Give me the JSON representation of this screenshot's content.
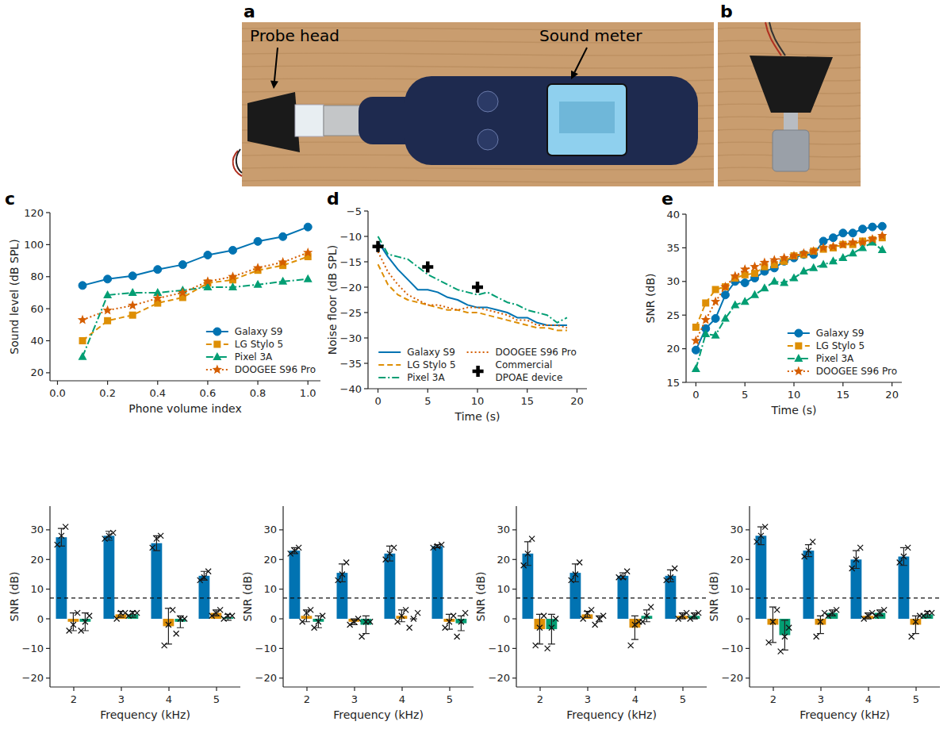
{
  "photos": [
    {
      "panel_label": "a",
      "labels": [
        "Probe head",
        "Sound meter"
      ]
    },
    {
      "panel_label": "b"
    }
  ],
  "chart_data": [
    {
      "type": "line",
      "panel_label": "c",
      "x_label": "Phone volume index",
      "y_label": "Sound level (dB SPL)",
      "x": [
        0.1,
        0.2,
        0.3,
        0.4,
        0.5,
        0.6,
        0.7,
        0.8,
        0.9,
        1.0
      ],
      "xlim": [
        -0.03,
        1.05
      ],
      "xticks": [
        {
          "value": 0,
          "label": "0.0"
        },
        0.2,
        0.4,
        0.6,
        0.8,
        {
          "value": 1,
          "label": "1.0"
        }
      ],
      "ylim": [
        15,
        120
      ],
      "yticks": [
        20,
        40,
        60,
        80,
        100,
        120
      ],
      "legend": "lower right",
      "series": [
        {
          "name": "Galaxy S9",
          "color": "#0173b2",
          "marker": "circle",
          "line_style": "solid",
          "values": [
            74.5,
            78.5,
            80.5,
            84.5,
            87.5,
            93.5,
            96.5,
            102,
            105,
            111
          ]
        },
        {
          "name": "LG Stylo 5",
          "color": "#de8f05",
          "marker": "square",
          "line_style": "dashed",
          "values": [
            40,
            52.5,
            56,
            63.5,
            67,
            76,
            78,
            84,
            87,
            92.5
          ]
        },
        {
          "name": "Pixel 3A",
          "color": "#029e73",
          "marker": "triangle",
          "line_style": "dashdot",
          "values": [
            30,
            68.5,
            70,
            70,
            71.5,
            73.5,
            73.5,
            75,
            77,
            78.5
          ]
        },
        {
          "name": "DOOGEE S96 Pro",
          "color": "#d55e00",
          "marker": "star",
          "line_style": "dotted",
          "values": [
            53,
            59,
            62,
            66.5,
            70,
            77,
            80,
            85.5,
            89,
            95
          ]
        }
      ]
    },
    {
      "type": "line",
      "panel_label": "d",
      "x_label": "Time (s)",
      "y_label": "Noise floor (dB SPL)",
      "x": [
        0,
        1,
        2,
        3,
        4,
        5,
        6,
        7,
        8,
        9,
        10,
        11,
        12,
        13,
        14,
        15,
        16,
        17,
        18,
        19
      ],
      "xlim": [
        -1,
        21
      ],
      "xticks": [
        0,
        5,
        10,
        15,
        20
      ],
      "ylim": [
        -40,
        -5
      ],
      "yticks": [
        {
          "value": -40,
          "label": "−40"
        },
        {
          "value": -35,
          "label": "−35"
        },
        {
          "value": -30,
          "label": "−30"
        },
        {
          "value": -25,
          "label": "−25"
        },
        {
          "value": -20,
          "label": "−20"
        },
        {
          "value": -15,
          "label": "−15"
        },
        {
          "value": -10,
          "label": "−10"
        },
        {
          "value": -5,
          "label": "−5"
        }
      ],
      "legend": "lower center",
      "series": [
        {
          "name": "Galaxy S9",
          "color": "#0173b2",
          "line_style": "solid",
          "values": [
            -11,
            -14,
            -16.5,
            -18.5,
            -20.5,
            -20.5,
            -21,
            -22,
            -22.5,
            -23.5,
            -24,
            -24,
            -24.5,
            -25,
            -26,
            -26,
            -27,
            -27.5,
            -27.5,
            -27.5
          ]
        },
        {
          "name": "LG Stylo 5",
          "color": "#de8f05",
          "line_style": "dashed",
          "values": [
            -15.5,
            -19.5,
            -21.5,
            -22.5,
            -23,
            -23.5,
            -24,
            -24.5,
            -24.5,
            -25,
            -25,
            -25.5,
            -26,
            -26.5,
            -27,
            -27.5,
            -28,
            -28,
            -28.5,
            -28.5
          ]
        },
        {
          "name": "Pixel 3A",
          "color": "#029e73",
          "line_style": "dashdot",
          "values": [
            -10,
            -13.5,
            -14,
            -14.5,
            -16,
            -17.5,
            -18.5,
            -19.5,
            -20.5,
            -21,
            -21.5,
            -21,
            -22,
            -23,
            -23.5,
            -24.5,
            -25,
            -25.5,
            -27,
            -26
          ]
        },
        {
          "name": "DOOGEE S96 Pro",
          "color": "#d55e00",
          "line_style": "dotted",
          "values": [
            -13,
            -17,
            -19.5,
            -21.5,
            -22.5,
            -23.5,
            -23.5,
            -24,
            -24.5,
            -24,
            -24,
            -24.5,
            -25,
            -25.5,
            -26.5,
            -26.5,
            -27.5,
            -27.5,
            -27.5,
            -28
          ]
        },
        {
          "name": "Commercial DPOAE device",
          "type": "scatter",
          "color": "#000000",
          "marker": "plus",
          "x": [
            0,
            5,
            10
          ],
          "values": [
            -12,
            -16,
            -20
          ]
        }
      ]
    },
    {
      "type": "line",
      "panel_label": "e",
      "x_label": "Time (s)",
      "y_label": "SNR (dB)",
      "x": [
        0,
        1,
        2,
        3,
        4,
        5,
        6,
        7,
        8,
        9,
        10,
        11,
        12,
        13,
        14,
        15,
        16,
        17,
        18,
        19
      ],
      "xlim": [
        -1,
        21
      ],
      "xticks": [
        0,
        5,
        10,
        15,
        20
      ],
      "ylim": [
        15,
        40
      ],
      "yticks": [
        15,
        20,
        25,
        30,
        35,
        40
      ],
      "legend": "lower right",
      "series": [
        {
          "name": "Galaxy S9",
          "color": "#0173b2",
          "marker": "circle",
          "line_style": "solid",
          "values": [
            19.8,
            23,
            24.5,
            28,
            30,
            29.8,
            30.5,
            31.5,
            32,
            33,
            33.5,
            34,
            34,
            36,
            36.5,
            37.2,
            37.2,
            37.8,
            38.1,
            38.2
          ]
        },
        {
          "name": "LG Stylo 5",
          "color": "#de8f05",
          "marker": "square",
          "line_style": "dashed",
          "values": [
            23.2,
            26.8,
            28.8,
            29.2,
            30.5,
            31,
            31.2,
            32.2,
            32.5,
            33,
            33.8,
            34,
            34.5,
            34.8,
            35,
            35.5,
            35.5,
            36,
            36.2,
            36.5
          ]
        },
        {
          "name": "Pixel 3A",
          "color": "#029e73",
          "marker": "triangle",
          "line_style": "dashdot",
          "values": [
            17,
            22.2,
            22,
            24.5,
            26.5,
            27,
            28,
            29,
            30,
            29.8,
            30.5,
            31.5,
            32,
            32.5,
            33,
            33.5,
            34.2,
            35,
            35.8,
            34.7
          ]
        },
        {
          "name": "DOOGEE S96 Pro",
          "color": "#d55e00",
          "marker": "star",
          "line_style": "dotted",
          "values": [
            21.2,
            24.3,
            27,
            29.2,
            30.8,
            31.8,
            32.2,
            32.8,
            33.2,
            33.5,
            33.8,
            34.2,
            34.5,
            35,
            35.2,
            35.5,
            35.8,
            35.8,
            36.3,
            36.8
          ]
        }
      ]
    },
    {
      "type": "bar",
      "x_label": "Frequency (kHz)",
      "y_label": "SNR (dB)",
      "categories": [
        2,
        3,
        4,
        5
      ],
      "ylim": [
        -23,
        38
      ],
      "yticks": [
        {
          "value": -20,
          "label": "−20"
        },
        {
          "value": -10,
          "label": "−10"
        },
        0,
        10,
        20,
        30
      ],
      "reference_line": 7,
      "series": [
        {
          "color": "#0173b2",
          "values": [
            27.5,
            28,
            25.5,
            14.5
          ],
          "errors": [
            3,
            1.5,
            2.5,
            1.5
          ],
          "points": [
            [
              25,
              28,
              31
            ],
            [
              27,
              28,
              29
            ],
            [
              24,
              27,
              28
            ],
            [
              13,
              14,
              16
            ]
          ]
        },
        {
          "color": "#de8f05",
          "values": [
            -1,
            1.5,
            -2.5,
            2
          ],
          "errors": [
            3,
            1,
            6,
            1
          ],
          "points": [
            [
              -4,
              -2,
              2
            ],
            [
              0,
              2,
              2
            ],
            [
              -9,
              -2,
              3
            ],
            [
              1,
              2,
              3
            ]
          ]
        },
        {
          "color": "#029e73",
          "values": [
            -1,
            1.5,
            -1,
            0.5
          ],
          "errors": [
            3,
            1,
            2,
            1
          ],
          "points": [
            [
              -4,
              -1,
              1
            ],
            [
              1,
              2,
              2
            ],
            [
              -5,
              0,
              0
            ],
            [
              0,
              1,
              1
            ]
          ]
        }
      ]
    },
    {
      "type": "bar",
      "x_label": "Frequency (kHz)",
      "y_label": "SNR (dB)",
      "categories": [
        2,
        3,
        4,
        5
      ],
      "ylim": [
        -23,
        38
      ],
      "yticks": [
        {
          "value": -20,
          "label": "−20"
        },
        {
          "value": -10,
          "label": "−10"
        },
        0,
        10,
        20,
        30
      ],
      "reference_line": 7,
      "series": [
        {
          "color": "#0173b2",
          "values": [
            23,
            15.5,
            22,
            24.5
          ],
          "errors": [
            1,
            3,
            2.5,
            0.5
          ],
          "points": [
            [
              22,
              23,
              24
            ],
            [
              13,
              15,
              19
            ],
            [
              20,
              22,
              24
            ],
            [
              24,
              24.5,
              25
            ]
          ]
        },
        {
          "color": "#de8f05",
          "values": [
            1,
            -1,
            1,
            -1
          ],
          "errors": [
            2,
            1,
            2,
            2.5
          ],
          "points": [
            [
              -1,
              2,
              3
            ],
            [
              -2,
              -1,
              0
            ],
            [
              -1,
              1,
              3
            ],
            [
              -3,
              -1,
              1
            ]
          ]
        },
        {
          "color": "#029e73",
          "values": [
            -1,
            -2,
            0,
            -1.5
          ],
          "errors": [
            2,
            3,
            0,
            2.5
          ],
          "points": [
            [
              -3,
              -1,
              1
            ],
            [
              -6,
              -1,
              -1
            ],
            [
              -3,
              0,
              2
            ],
            [
              -6,
              -1,
              2
            ]
          ]
        }
      ]
    },
    {
      "type": "bar",
      "x_label": "Frequency (kHz)",
      "y_label": "SNR (dB)",
      "categories": [
        2,
        3,
        4,
        5
      ],
      "ylim": [
        -23,
        38
      ],
      "yticks": [
        {
          "value": -20,
          "label": "−20"
        },
        {
          "value": -10,
          "label": "−10"
        },
        0,
        10,
        20,
        30
      ],
      "reference_line": 7,
      "series": [
        {
          "color": "#0173b2",
          "values": [
            22,
            15.5,
            14.5,
            14.5
          ],
          "errors": [
            4,
            3,
            1,
            2
          ],
          "points": [
            [
              18,
              22,
              27
            ],
            [
              13,
              15,
              19
            ],
            [
              14,
              14,
              16
            ],
            [
              13,
              14,
              17
            ]
          ]
        },
        {
          "color": "#de8f05",
          "values": [
            -3.5,
            1.5,
            -3,
            1
          ],
          "errors": [
            5,
            1,
            4,
            1
          ],
          "points": [
            [
              -9,
              -3,
              1
            ],
            [
              0,
              2,
              3
            ],
            [
              -9,
              -2,
              -1
            ],
            [
              0,
              1,
              2
            ]
          ]
        },
        {
          "color": "#029e73",
          "values": [
            -3.5,
            0,
            1,
            1
          ],
          "errors": [
            5,
            1,
            2,
            1
          ],
          "points": [
            [
              -10,
              -3,
              0
            ],
            [
              -2,
              0,
              1
            ],
            [
              -1,
              1,
              4
            ],
            [
              0,
              1,
              2
            ]
          ]
        }
      ]
    },
    {
      "type": "bar",
      "x_label": "Frequency (kHz)",
      "y_label": "SNR (dB)",
      "categories": [
        2,
        3,
        4,
        5
      ],
      "ylim": [
        -23,
        38
      ],
      "yticks": [
        {
          "value": -20,
          "label": "−20"
        },
        {
          "value": -10,
          "label": "−10"
        },
        0,
        10,
        20,
        30
      ],
      "reference_line": 7,
      "series": [
        {
          "color": "#0173b2",
          "values": [
            28,
            23,
            20,
            21
          ],
          "errors": [
            3,
            2,
            3,
            3
          ],
          "points": [
            [
              26,
              28,
              31
            ],
            [
              21,
              23,
              26
            ],
            [
              17,
              20,
              24
            ],
            [
              19,
              21,
              24
            ]
          ]
        },
        {
          "color": "#de8f05",
          "values": [
            -2,
            -2,
            1,
            -2
          ],
          "errors": [
            6,
            3,
            1,
            3
          ],
          "points": [
            [
              -8,
              -1,
              3
            ],
            [
              -6,
              -1,
              2
            ],
            [
              0,
              1,
              2
            ],
            [
              -6,
              -1,
              1
            ]
          ]
        },
        {
          "color": "#029e73",
          "values": [
            -5.5,
            2,
            2,
            1.5
          ],
          "errors": [
            5,
            1,
            1,
            1
          ],
          "points": [
            [
              -11,
              -6,
              -3
            ],
            [
              1,
              2,
              3
            ],
            [
              1,
              2,
              3
            ],
            [
              1,
              2,
              2
            ]
          ]
        }
      ]
    }
  ]
}
